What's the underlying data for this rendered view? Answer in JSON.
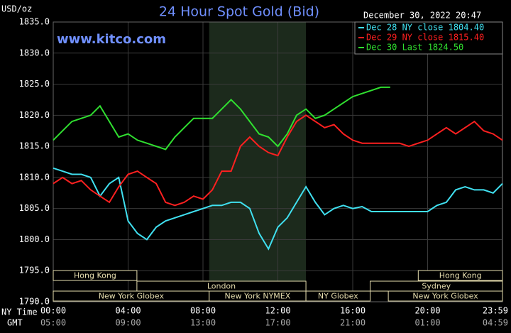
{
  "chart_data": {
    "type": "line",
    "title": "24 Hour Spot Gold (Bid)",
    "unit_label": "USD/oz",
    "timestamp": "December 30, 2022 20:47",
    "watermark": "www.kitco.com",
    "x_label_primary": "NY Time",
    "x_label_secondary": "GMT",
    "x": [
      0,
      0.5,
      1,
      1.5,
      2,
      2.5,
      3,
      3.5,
      4,
      4.5,
      5,
      5.5,
      6,
      6.5,
      7,
      7.5,
      8,
      8.5,
      9,
      9.5,
      10,
      10.5,
      11,
      11.5,
      12,
      12.5,
      13,
      13.5,
      14,
      14.5,
      15,
      15.5,
      16,
      16.5,
      17,
      17.5,
      18,
      18.5,
      19,
      19.5,
      20,
      20.5,
      21,
      21.5,
      22,
      22.5,
      23,
      23.5,
      24
    ],
    "xlim": [
      0,
      24
    ],
    "xticks": [
      {
        "value": 0,
        "label": "00:00"
      },
      {
        "value": 4,
        "label": "04:00"
      },
      {
        "value": 8,
        "label": "08:00"
      },
      {
        "value": 12,
        "label": "12:00"
      },
      {
        "value": 16,
        "label": "16:00"
      },
      {
        "value": 20,
        "label": "20:00"
      },
      {
        "value": 23.98,
        "label": "23:59"
      }
    ],
    "xticks_secondary": [
      {
        "value": 0,
        "label": "05:00"
      },
      {
        "value": 4,
        "label": "09:00"
      },
      {
        "value": 8,
        "label": "13:00"
      },
      {
        "value": 12,
        "label": "17:00"
      },
      {
        "value": 16,
        "label": "21:00"
      },
      {
        "value": 20,
        "label": "01:00"
      },
      {
        "value": 23.98,
        "label": "04:59"
      }
    ],
    "ylim": [
      1790,
      1835
    ],
    "yticks": [
      {
        "value": 1790,
        "label": "1790.0"
      },
      {
        "value": 1795,
        "label": "1795.0"
      },
      {
        "value": 1800,
        "label": "1800.0"
      },
      {
        "value": 1805,
        "label": "1805.0"
      },
      {
        "value": 1810,
        "label": "1810.0"
      },
      {
        "value": 1815,
        "label": "1815.0"
      },
      {
        "value": 1820,
        "label": "1820.0"
      },
      {
        "value": 1825,
        "label": "1825.0"
      },
      {
        "value": 1830,
        "label": "1830.0"
      },
      {
        "value": 1835,
        "label": "1835.0"
      }
    ],
    "grid": true,
    "shaded": [
      8.33,
      13.5
    ],
    "sessions": [
      {
        "label": "Hong Kong",
        "start": 0,
        "end": 4.47,
        "row": 0
      },
      {
        "label": "Hong Kong",
        "start": 19.5,
        "end": 24,
        "row": 0
      },
      {
        "label": "London",
        "start": 4.47,
        "end": 13.5,
        "row": 1
      },
      {
        "label": "Sydney",
        "start": 16.93,
        "end": 24,
        "row": 1
      },
      {
        "label": "New York Globex",
        "start": 0,
        "end": 8.33,
        "row": 2
      },
      {
        "label": "New York NYMEX",
        "start": 8.33,
        "end": 13.5,
        "row": 2
      },
      {
        "label": "NY Globex",
        "start": 13.5,
        "end": 16.93,
        "row": 2
      },
      {
        "label": "New York Globex",
        "start": 17.9,
        "end": 24,
        "row": 2
      }
    ],
    "series": [
      {
        "name": "Dec 28 NY close 1804.40",
        "color": "#40e0f0",
        "values": [
          1811.5,
          1811,
          1810.5,
          1810.5,
          1810,
          1807,
          1809,
          1810,
          1803,
          1801,
          1800,
          1802,
          1803,
          1803.5,
          1804,
          1804.5,
          1805,
          1805.5,
          1805.5,
          1806,
          1806,
          1805,
          1801,
          1798.5,
          1802,
          1803.5,
          1806,
          1808.5,
          1806,
          1804,
          1805,
          1805.5,
          1805,
          1805.3,
          1804.5,
          1804.5,
          1804.5,
          1804.5,
          1804.5,
          1804.5,
          1804.5,
          1805.5,
          1806,
          1808,
          1808.5,
          1808,
          1808,
          1807.5,
          1809
        ]
      },
      {
        "name": "Dec 29 NY close 1815.40",
        "color": "#ff2020",
        "values": [
          1809,
          1810,
          1809,
          1809.5,
          1808,
          1807,
          1806,
          1808.5,
          1810.5,
          1811,
          1810,
          1809,
          1806,
          1805.5,
          1806,
          1807,
          1806.5,
          1808,
          1811,
          1811,
          1815,
          1816.5,
          1815,
          1814,
          1813.5,
          1816.5,
          1819,
          1820,
          1819,
          1818,
          1818.5,
          1817,
          1816,
          1815.5,
          1815.5,
          1815.5,
          1815.5,
          1815.5,
          1815,
          1815.5,
          1816,
          1817,
          1818,
          1817,
          1818,
          1819,
          1817.5,
          1817,
          1816
        ]
      },
      {
        "name": "Dec 30 Last 1824.50",
        "color": "#30e030",
        "values": [
          1816,
          1817.5,
          1819,
          1819.5,
          1820,
          1821.5,
          1819,
          1816.5,
          1817,
          1816,
          1815.5,
          1815,
          1814.5,
          1816.5,
          1818,
          1819.5,
          1819.5,
          1819.5,
          1821,
          1822.5,
          1821,
          1819,
          1817,
          1816.5,
          1815,
          1817,
          1820,
          1821,
          1819.5,
          1820,
          1821,
          1822,
          1823,
          1823.5,
          1824,
          1824.5,
          1824.5,
          null,
          null,
          null,
          null,
          null,
          null,
          null,
          null,
          null,
          null,
          null,
          null
        ]
      }
    ]
  }
}
